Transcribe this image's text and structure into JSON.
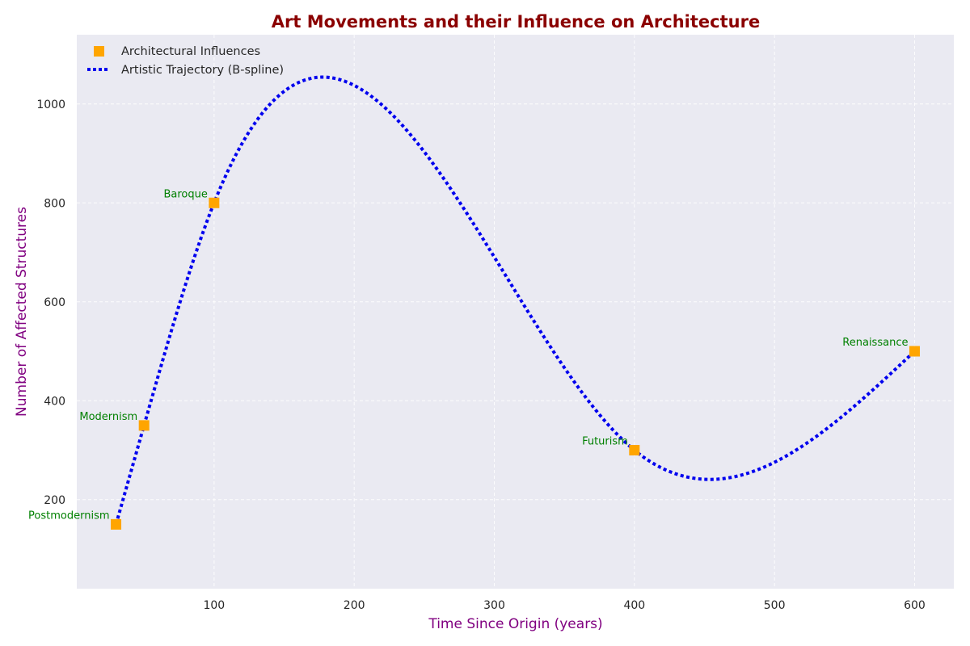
{
  "chart_data": {
    "type": "scatter",
    "title": "Art Movements and their Influence on Architecture",
    "xlabel": "Time Since Origin (years)",
    "ylabel": "Number of Affected Structures",
    "xlim": [
      2,
      628
    ],
    "ylim": [
      20,
      1140
    ],
    "xticks": [
      100,
      200,
      300,
      400,
      500,
      600
    ],
    "yticks": [
      200,
      400,
      600,
      800,
      1000
    ],
    "grid": true,
    "legend_position": "top-left",
    "points": [
      {
        "label": "Postmodernism",
        "x": 30,
        "y": 150
      },
      {
        "label": "Modernism",
        "x": 50,
        "y": 350
      },
      {
        "label": "Baroque",
        "x": 100,
        "y": 800
      },
      {
        "label": "Futurism",
        "x": 400,
        "y": 300
      },
      {
        "label": "Renaissance",
        "x": 600,
        "y": 500
      }
    ],
    "series": [
      {
        "name": "Architectural Influences",
        "kind": "scatter",
        "marker": "square",
        "color": "#ffa500"
      },
      {
        "name": "Artistic Trajectory (B-spline)",
        "kind": "line",
        "style": "dotted",
        "color": "#0000ee"
      }
    ],
    "colors": {
      "title": "#8b0000",
      "axis_label": "#800080",
      "annotation": "#008000",
      "plot_background": "#eaeaf2",
      "grid": "#ffffff"
    }
  }
}
